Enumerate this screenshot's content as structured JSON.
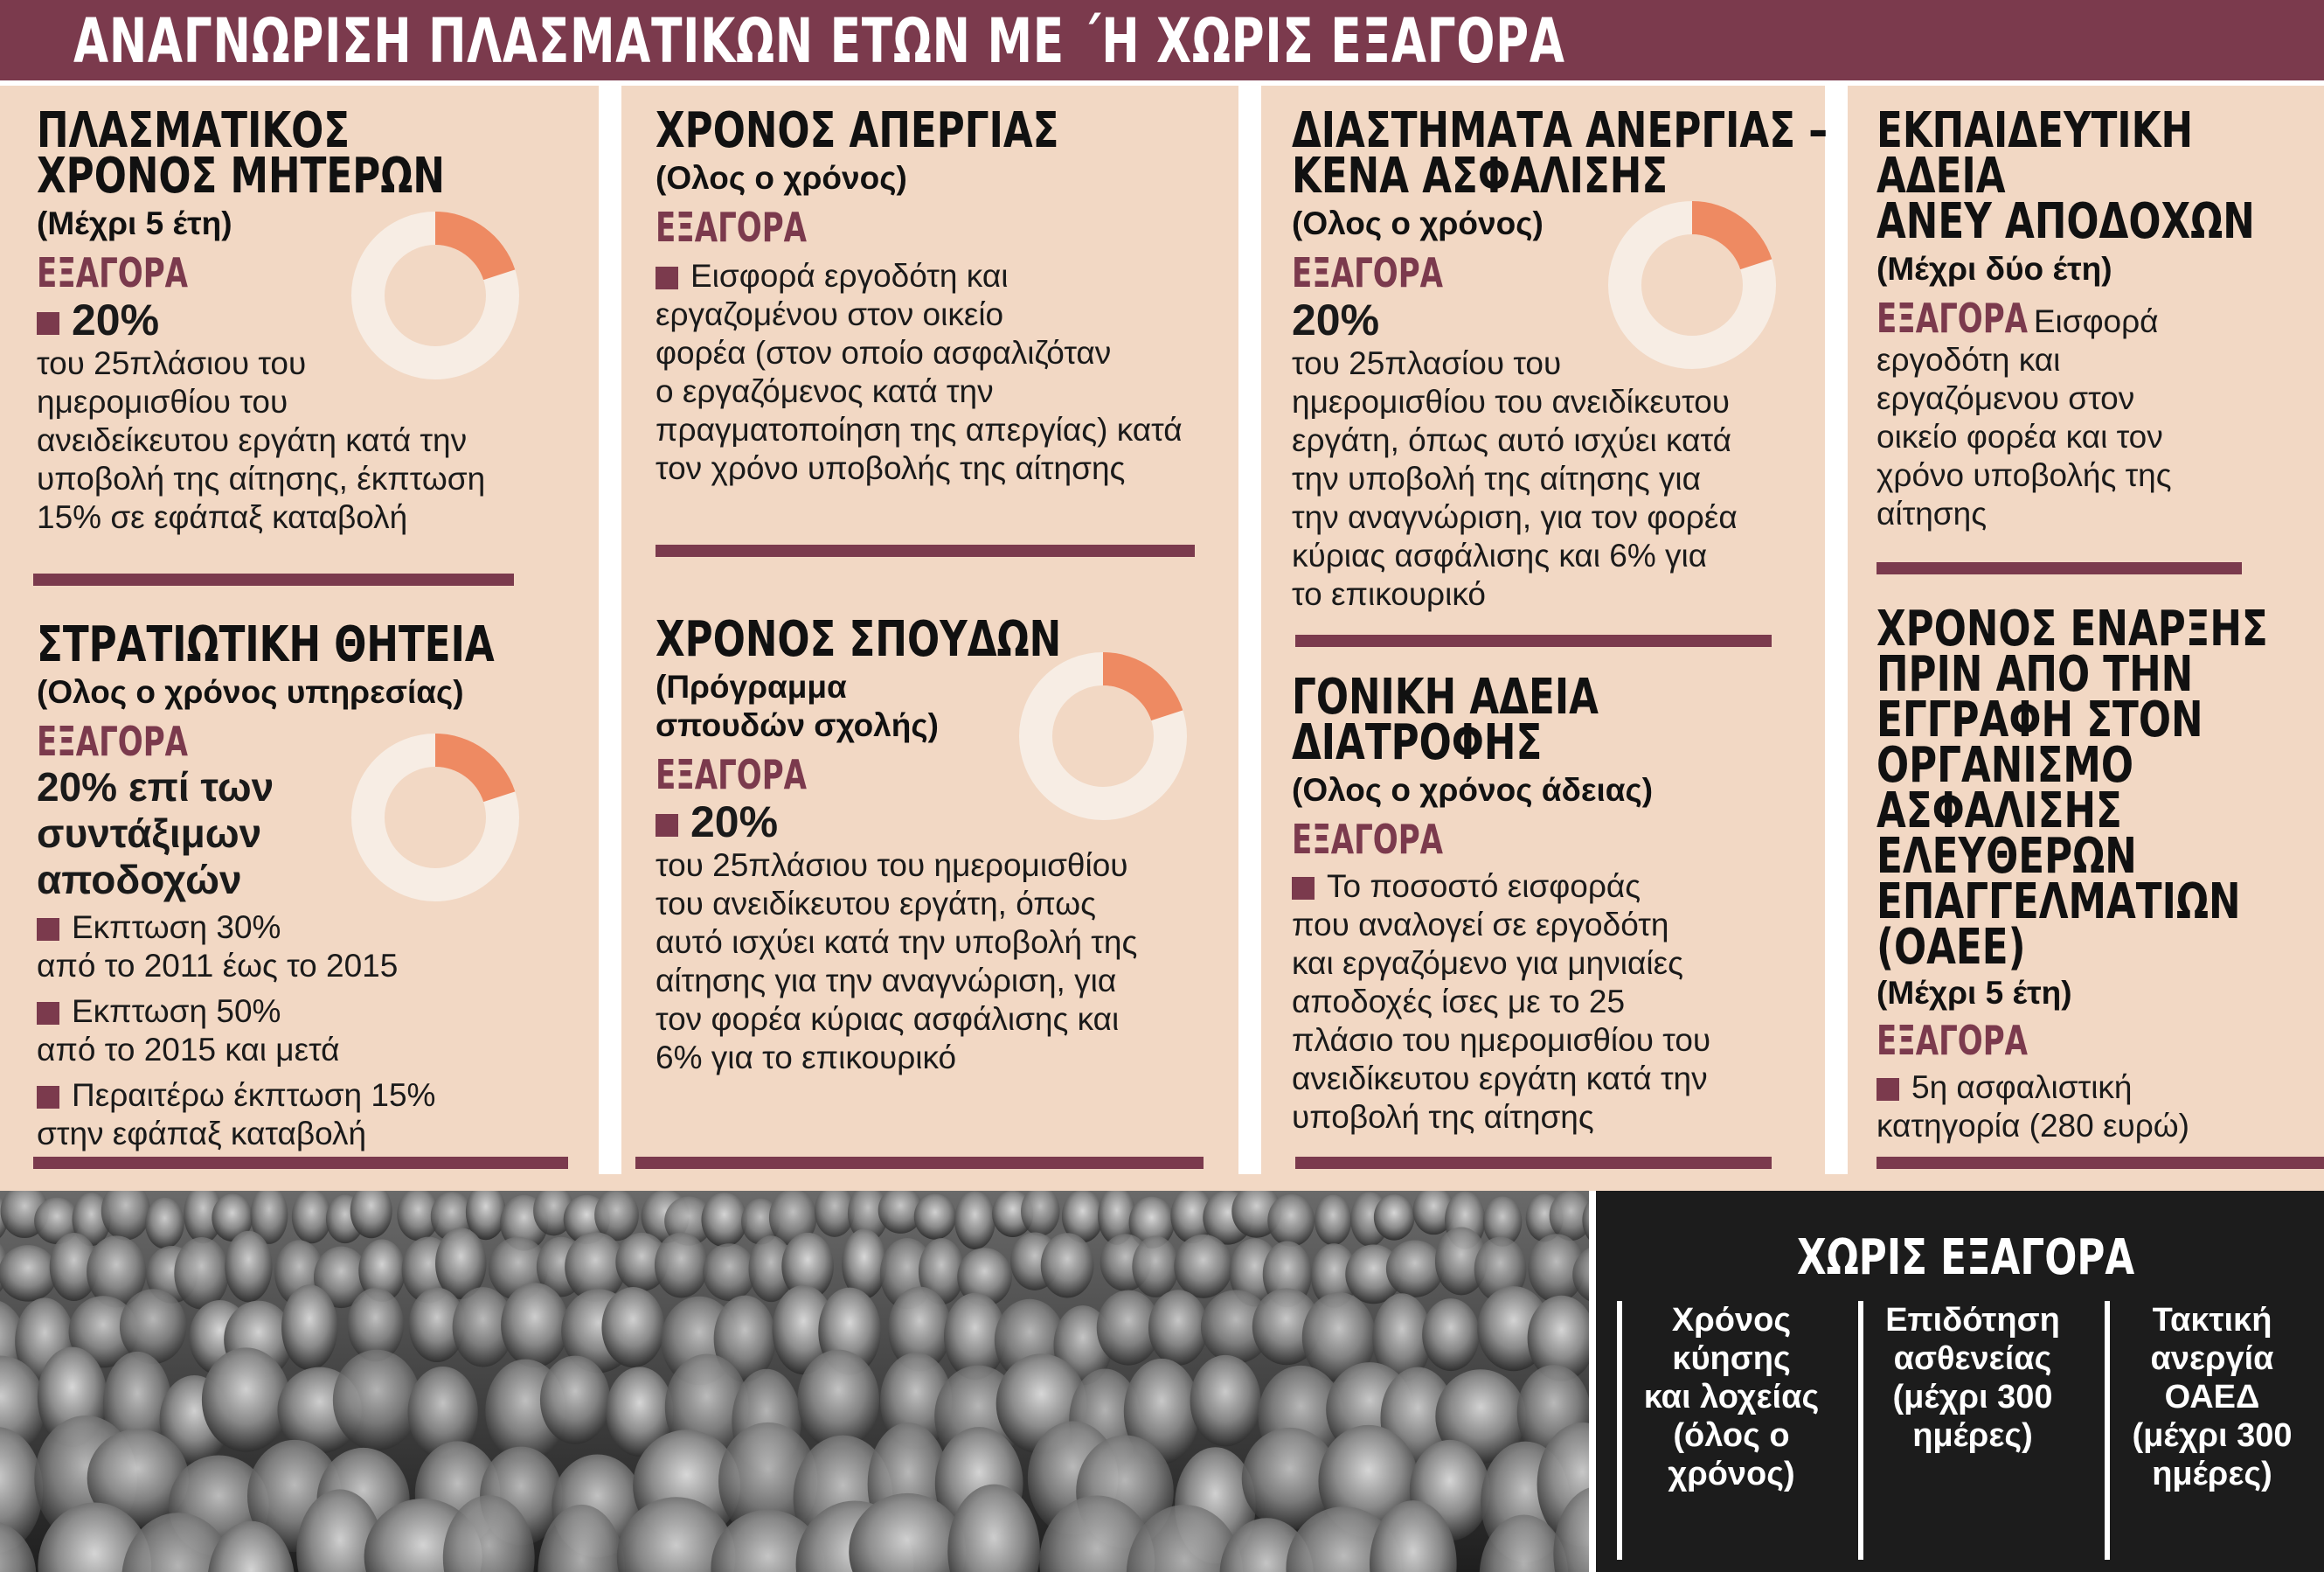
{
  "header": {
    "title": "ΑΝΑΓΝΩΡΙΣΗ ΠΛΑΣΜΑΤΙΚΩΝ ΕΤΩΝ ΜΕ ΄Η ΧΩΡΙΣ ΕΞΑΓΟΡΑ"
  },
  "colors": {
    "accent": "#7b3a4d",
    "background": "#f2d8c4",
    "donut_highlight": "#ee8a62",
    "dark_panel": "#1c1c1c"
  },
  "mothers": {
    "title": [
      "ΠΛΑΣΜΑΤΙΚΟΣ",
      "ΧΡΟΝΟΣ ΜΗΤΕΡΩΝ"
    ],
    "subtitle": "(Μέχρι 5 έτη)",
    "label": "ΕΞΑΓΟΡΑ",
    "percent": "20%",
    "percent_value": 20,
    "text": [
      "του 25πλάσιου του",
      "ημερομισθίου του",
      "ανειδείκευτου εργάτη κατά την",
      "υποβολή της αίτησης, έκπτωση",
      "15% σε εφάπαξ καταβολή"
    ]
  },
  "military": {
    "title": "ΣΤΡΑΤΙΩΤΙΚΗ ΘΗΤΕΙΑ",
    "subtitle": "(Ολος ο χρόνος υπηρεσίας)",
    "label": "ΕΞΑΓΟΡΑ",
    "percent_text": [
      "20% επί των",
      "συντάξιμων",
      "αποδοχών"
    ],
    "percent_value": 20,
    "items": [
      [
        "Εκπτωση 30%",
        "από το 2011 έως το 2015"
      ],
      [
        "Εκπτωση 50%",
        "από το 2015 και μετά"
      ],
      [
        "Περαιτέρω έκπτωση 15%",
        "στην εφάπαξ καταβολή"
      ]
    ]
  },
  "strike": {
    "title": "ΧΡΟΝΟΣ ΑΠΕΡΓΙΑΣ",
    "subtitle": "(Ολος ο χρόνος)",
    "label": "ΕΞΑΓΟΡΑ",
    "text": [
      "Εισφορά εργοδότη και",
      "εργαζομένου στον οικείο",
      "φορέα (στον οποίο ασφαλιζόταν",
      "ο εργαζόμενος κατά την",
      "πραγματοποίηση της απεργίας) κατά",
      "τον χρόνο υποβολής της αίτησης"
    ]
  },
  "studies": {
    "title": "ΧΡΟΝΟΣ ΣΠΟΥΔΩΝ",
    "subtitle": [
      "(Πρόγραμμα",
      "σπουδών σχολής)"
    ],
    "label": "ΕΞΑΓΟΡΑ",
    "percent": "20%",
    "percent_value": 20,
    "text": [
      "του 25πλάσιου του ημερομισθίου",
      "του ανειδίκευτου εργάτη, όπως",
      "αυτό ισχύει κατά την υποβολή της",
      "αίτησης για την αναγνώριση, για",
      "τον φορέα κύριας ασφάλισης και",
      "6% για το επικουρικό"
    ]
  },
  "unemployment": {
    "title": [
      "ΔΙΑΣΤΗΜΑΤΑ ΑΝΕΡΓΙΑΣ –",
      "ΚΕΝΑ ΑΣΦΑΛΙΣΗΣ"
    ],
    "subtitle": "(Ολος ο χρόνος)",
    "label": "ΕΞΑΓΟΡΑ",
    "percent": "20%",
    "percent_value": 20,
    "text": [
      "του 25πλασίου του",
      "ημερομισθίου του ανειδίκευτου",
      "εργάτη, όπως αυτό ισχύει κατά",
      "την υποβολή της αίτησης για",
      "την αναγνώριση, για τον φορέα",
      "κύριας ασφάλισης και 6% για",
      "το επικουρικό"
    ]
  },
  "parental": {
    "title": [
      "ΓΟΝΙΚΗ ΑΔΕΙΑ",
      "ΔΙΑΤΡΟΦΗΣ"
    ],
    "subtitle": "(Ολος ο χρόνος άδειας)",
    "label": "ΕΞΑΓΟΡΑ",
    "text": [
      "Το ποσοστό εισφοράς",
      "που αναλογεί σε εργοδότη",
      "και εργαζόμενο για μηνιαίες",
      "αποδοχές ίσες με το 25",
      "πλάσιο του ημερομισθίου του",
      "ανειδίκευτου εργάτη κατά την",
      "υποβολή της αίτησης"
    ]
  },
  "education": {
    "title": [
      "ΕΚΠΑΙΔΕΥΤΙΚΗ",
      "ΑΔΕΙΑ",
      "ΑΝΕΥ ΑΠΟΔΟΧΩΝ"
    ],
    "subtitle": "(Μέχρι δύο έτη)",
    "label": "ΕΞΑΓΟΡΑ",
    "text_first": "Εισφορά",
    "text": [
      "εργοδότη και",
      "εργαζόμενου στον",
      "οικείο φορέα και τον",
      "χρόνο υποβολής της",
      "αίτησης"
    ]
  },
  "oaee": {
    "title": [
      "ΧΡΟΝΟΣ ΕΝΑΡΞΗΣ",
      "ΠΡΙΝ ΑΠΟ ΤΗΝ",
      "ΕΓΓΡΑΦΗ ΣΤΟΝ",
      "ΟΡΓΑΝΙΣΜΟ",
      "ΑΣΦΑΛΙΣΗΣ",
      "ΕΛΕΥΘΕΡΩΝ",
      "ΕΠΑΓΓΕΛΜΑΤΙΩΝ",
      "(ΟΑΕΕ)"
    ],
    "subtitle": "(Μέχρι 5 έτη)",
    "label": "ΕΞΑΓΟΡΑ",
    "text": [
      "5η ασφαλιστική",
      "κατηγορία (280 ευρώ)"
    ]
  },
  "no_buyout": {
    "title": "ΧΩΡΙΣ ΕΞΑΓΟΡΑ",
    "columns": [
      [
        "Χρόνος",
        "κύησης",
        "και λοχείας",
        "(όλος ο",
        "χρόνος)"
      ],
      [
        "Επιδότηση",
        "ασθενείας",
        "(μέχρι 300",
        "ημέρες)"
      ],
      [
        "Τακτική",
        "ανεργία",
        "ΟΑΕΔ",
        "(μέχρι 300",
        "ημέρες)"
      ]
    ]
  }
}
